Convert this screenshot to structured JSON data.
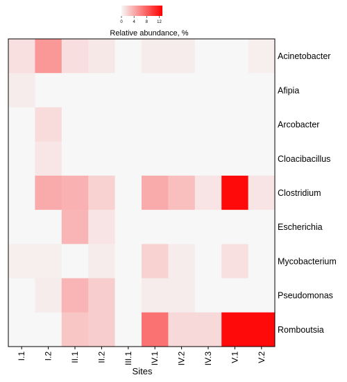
{
  "chart_data": {
    "type": "heatmap",
    "x_title": "Sites",
    "x": [
      "I.1",
      "I.2",
      "II.1",
      "II.2",
      "III.1",
      "IV.1",
      "IV.2",
      "IV.3",
      "V.1",
      "V.2"
    ],
    "y": [
      "Acinetobacter",
      "Afipia",
      "Arcobacter",
      "Cloacibacillus",
      "Clostridium",
      "Escherichia",
      "Mycobacterium",
      "Pseudomonas",
      "Romboutsia"
    ],
    "values": [
      [
        1.2,
        5.0,
        1.3,
        0.8,
        0.0,
        0.6,
        0.6,
        0.0,
        0.0,
        0.5
      ],
      [
        0.6,
        0.0,
        0.0,
        0.0,
        0.0,
        0.0,
        0.0,
        0.0,
        0.0,
        0.0
      ],
      [
        0.0,
        1.5,
        0.0,
        0.0,
        0.0,
        0.0,
        0.0,
        0.0,
        0.0,
        0.0
      ],
      [
        0.0,
        0.9,
        0.0,
        0.0,
        0.0,
        0.0,
        0.0,
        0.0,
        0.0,
        0.0
      ],
      [
        0.0,
        4.0,
        3.7,
        2.0,
        0.0,
        4.0,
        3.0,
        1.0,
        12.5,
        1.0
      ],
      [
        0.0,
        0.0,
        3.5,
        1.0,
        0.0,
        0.0,
        0.0,
        0.0,
        0.0,
        0.0
      ],
      [
        0.5,
        0.5,
        0.0,
        0.6,
        0.0,
        2.0,
        0.6,
        0.0,
        1.2,
        0.0
      ],
      [
        0.0,
        0.6,
        3.5,
        2.2,
        0.0,
        0.6,
        0.6,
        0.0,
        0.0,
        0.0
      ],
      [
        0.0,
        0.0,
        2.6,
        2.2,
        0.0,
        7.0,
        1.6,
        1.6,
        12.5,
        12.5
      ]
    ],
    "colorbar": {
      "title": "Relative abundance, %",
      "ticks": [
        0,
        4,
        8,
        12
      ],
      "range": [
        0,
        13
      ],
      "color_low": "#f7f7f7",
      "color_high": "#ff0000"
    }
  }
}
